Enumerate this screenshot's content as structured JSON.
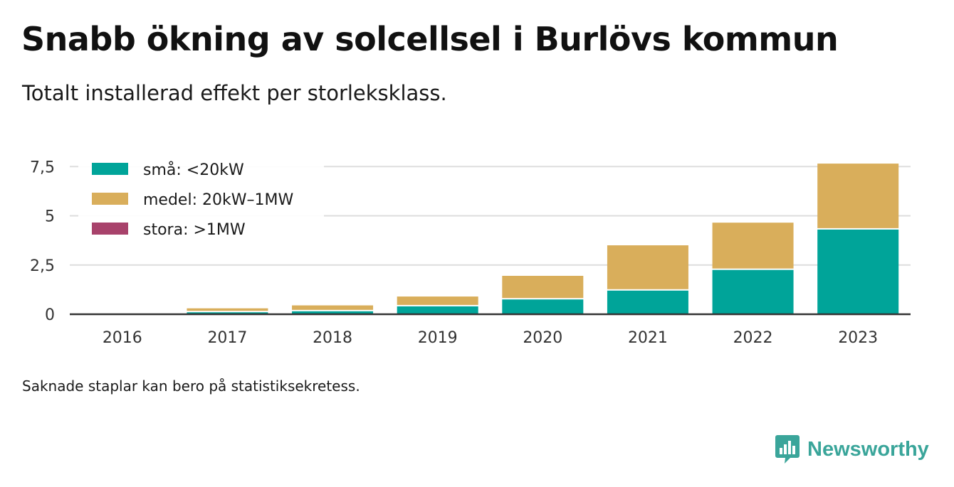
{
  "title": "Snabb ökning av solcellsel i Burlövs kommun",
  "subtitle": "Totalt installerad effekt per storleksklass.",
  "footnote": "Saknade staplar kan bero på statistiksekretess.",
  "brand": {
    "name": "Newsworthy",
    "logo_icon": "newsworthy-logo-icon",
    "color": "#3aa59a"
  },
  "chart_data": {
    "type": "bar",
    "stacked": true,
    "categories": [
      "2016",
      "2017",
      "2018",
      "2019",
      "2020",
      "2021",
      "2022",
      "2023"
    ],
    "series": [
      {
        "name": "små: <20kW",
        "color": "#00a499",
        "values": [
          0.0,
          0.1,
          0.15,
          0.4,
          0.75,
          1.2,
          2.25,
          4.3
        ]
      },
      {
        "name": "medel: 20kW–1MW",
        "color": "#d9ae5b",
        "values": [
          0.0,
          0.2,
          0.3,
          0.5,
          1.2,
          2.3,
          2.4,
          3.35
        ]
      },
      {
        "name": "stora: >1MW",
        "color": "#a8426b",
        "values": [
          0,
          0,
          0,
          0,
          0,
          0,
          0,
          0
        ]
      }
    ],
    "yticks": [
      0,
      2.5,
      5,
      7.5
    ],
    "ytick_labels": [
      "0",
      "2,5",
      "5",
      "7,5"
    ],
    "ylim": [
      0,
      7.7
    ],
    "xlabel": "",
    "ylabel": "",
    "grid": true,
    "legend_position": "top-left"
  }
}
